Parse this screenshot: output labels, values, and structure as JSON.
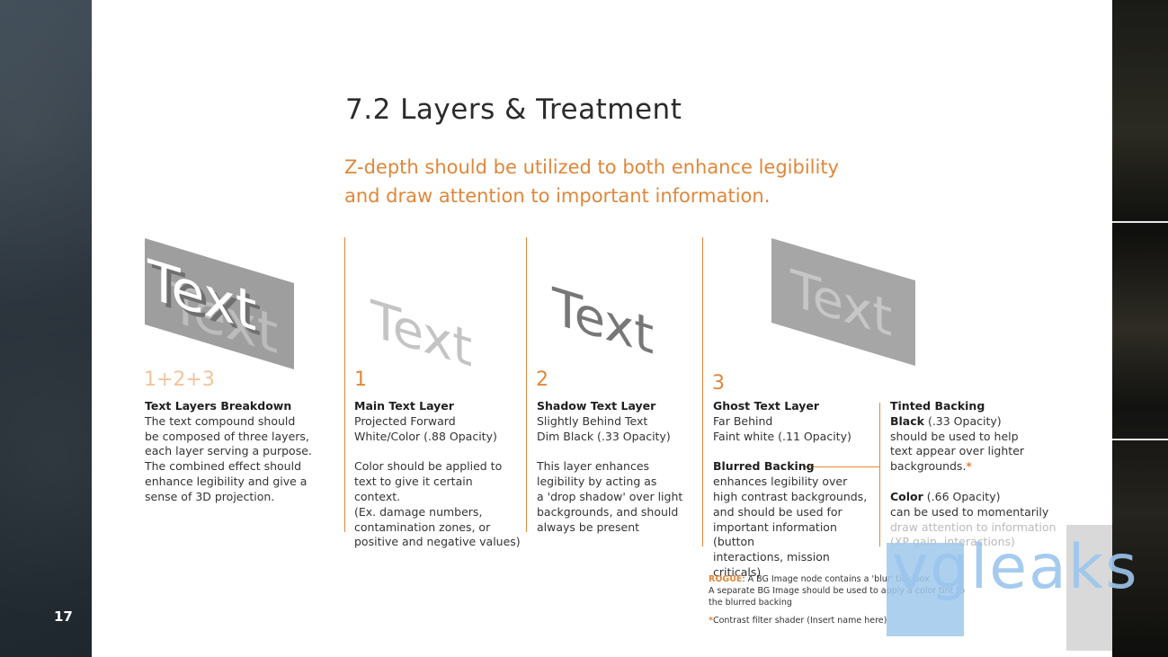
{
  "page": {
    "number": "17",
    "title": "7.2 Layers & Treatment",
    "subtitle_line1": "Z-depth should be utilized to both enhance legibility",
    "subtitle_line2": "and draw attention to important information."
  },
  "illustrations": {
    "sample_word": "Text"
  },
  "columns": {
    "breakdown": {
      "number": "1+2+3",
      "heading": "Text Layers Breakdown",
      "lines": [
        "The text compound should",
        "be composed of three layers,",
        "each layer serving a purpose.",
        "The combined effect should",
        "enhance legibility and give a",
        "sense of 3D projection."
      ]
    },
    "main": {
      "number": "1",
      "heading": "Main Text Layer",
      "lines": [
        "Projected Forward",
        "White/Color (.88 Opacity)"
      ],
      "body": [
        "Color should be applied to",
        "text to give it certain context.",
        "(Ex. damage numbers,",
        "contamination zones, or",
        "positive and negative values)"
      ]
    },
    "shadow": {
      "number": "2",
      "heading": "Shadow Text Layer",
      "lines": [
        "Slightly Behind Text",
        "Dim Black (.33 Opacity)"
      ],
      "body": [
        "This layer enhances",
        "legibility by acting as",
        "a 'drop shadow' over light",
        "backgrounds, and should",
        "always be present"
      ]
    },
    "ghost": {
      "number": "3",
      "heading": "Ghost Text Layer",
      "lines": [
        "Far Behind",
        "Faint white (.11 Opacity)"
      ],
      "sub_heading": "Blurred Backing",
      "body": [
        "enhances legibility over",
        "high contrast backgrounds,",
        "and should be used for",
        "important information (button",
        "interactions, mission criticals)"
      ]
    },
    "tinted": {
      "heading": "Tinted Backing",
      "black_label": "Black",
      "black_value": " (.33 Opacity)",
      "black_lines": [
        "should be used to help",
        "text appear over lighter"
      ],
      "black_last": "backgrounds.",
      "asterisk": "*",
      "color_label": "Color",
      "color_value": " (.66 Opacity)",
      "color_lines": [
        "can be used to momentarily"
      ],
      "color_faded": [
        "draw attention to information",
        "(XP gain, interactions)"
      ]
    }
  },
  "notes": {
    "rogue_label": "ROGUE",
    "rogue_text": ": A BG Image node contains a 'blur' tick box",
    "line2": "A separate BG Image should be used to apply a color tint to",
    "line3": "the blurred backing",
    "asterisk": "*",
    "footnote": "Contrast filter shader (Insert name here)"
  },
  "watermark": {
    "text": "vgleaks"
  },
  "colors": {
    "accent": "#e0873a",
    "accent_light": "#f3c39c",
    "text": "#333333",
    "panel_grey": "#9e9e9e"
  }
}
